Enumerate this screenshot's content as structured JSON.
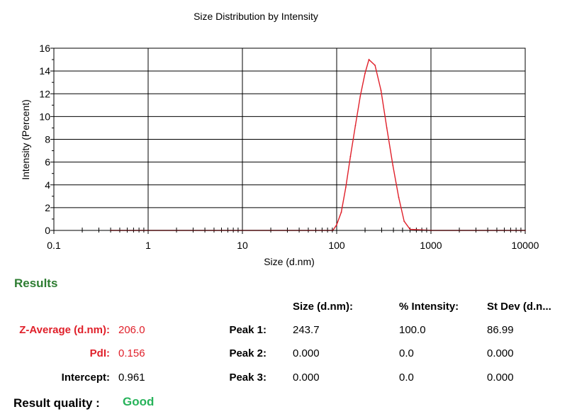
{
  "chart_data": {
    "type": "line",
    "title": "Size Distribution by Intensity",
    "xlabel": "Size (d.nm)",
    "ylabel": "Intensity (Percent)",
    "xscale": "log",
    "xlim": [
      0.1,
      10000
    ],
    "ylim": [
      0,
      16
    ],
    "x_ticks": [
      "0.1",
      "1",
      "10",
      "100",
      "1000",
      "10000"
    ],
    "y_ticks": [
      "0",
      "2",
      "4",
      "6",
      "8",
      "10",
      "12",
      "14",
      "16"
    ],
    "grid": true,
    "line_color": "#e0202a",
    "series": [
      {
        "x": [
          0.4,
          5,
          50,
          91,
          100,
          112,
          125,
          140,
          158,
          178,
          200,
          220,
          255,
          295,
          340,
          395,
          455,
          520,
          600,
          1000,
          10000
        ],
        "y": [
          0,
          0,
          0,
          0,
          0.5,
          1.6,
          3.8,
          6.5,
          9.2,
          11.8,
          13.8,
          15.0,
          14.5,
          12.3,
          9.0,
          5.7,
          2.9,
          0.8,
          0.1,
          0,
          0
        ]
      }
    ]
  },
  "results": {
    "heading": "Results",
    "col_size": "Size (d.nm):",
    "col_intensity": "% Intensity:",
    "col_stdev": "St Dev (d.n...",
    "z_avg_label": "Z-Average (d.nm):",
    "z_avg_value": "206.0",
    "pdi_label": "PdI:",
    "pdi_value": "0.156",
    "intercept_label": "Intercept:",
    "intercept_value": "0.961",
    "quality_label": "Result quality :",
    "quality_value": "Good",
    "peaks": [
      {
        "label": "Peak 1:",
        "size": "243.7",
        "intensity": "100.0",
        "stdev": "86.99"
      },
      {
        "label": "Peak 2:",
        "size": "0.000",
        "intensity": "0.0",
        "stdev": "0.000"
      },
      {
        "label": "Peak 3:",
        "size": "0.000",
        "intensity": "0.0",
        "stdev": "0.000"
      }
    ]
  }
}
